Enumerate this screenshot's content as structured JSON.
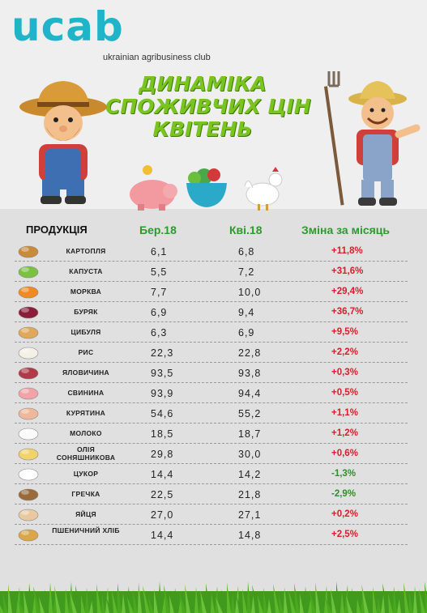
{
  "brand": {
    "logo_text": "ucab",
    "tagline": "ukrainian agribusiness club"
  },
  "headline": {
    "line1": "ДИНАМІКА",
    "line2": "СПОЖИВЧИХ ЦІН",
    "line3": "КВІТЕНЬ"
  },
  "colors": {
    "brand_teal": "#1fb4c8",
    "headline_green": "#7ac41f",
    "increase_red": "#d61f2c",
    "decrease_green": "#2e8f2a",
    "header_green": "#2d9a2d"
  },
  "decor_icons": [
    "farmer-left-icon",
    "piggy-bank-icon",
    "salad-bowl-icon",
    "rooster-icon",
    "farmer-with-pitchfork-icon",
    "grass-icon"
  ],
  "table": {
    "headers": {
      "product": "ПРОДУКЦІЯ",
      "prev": "Бер.18",
      "curr": "Кві.18",
      "change": "Зміна за місяць"
    },
    "rows": [
      {
        "icon": "potato-icon",
        "name": "КАРТОПЛЯ",
        "prev": "6,1",
        "curr": "6,8",
        "change": "+11,8%",
        "dir": "up"
      },
      {
        "icon": "cabbage-icon",
        "name": "КАПУСТА",
        "prev": "5,5",
        "curr": "7,2",
        "change": "+31,6%",
        "dir": "up"
      },
      {
        "icon": "carrot-icon",
        "name": "МОРКВА",
        "prev": "7,7",
        "curr": "10,0",
        "change": "+29,4%",
        "dir": "up"
      },
      {
        "icon": "beet-icon",
        "name": "БУРЯК",
        "prev": "6,9",
        "curr": "9,4",
        "change": "+36,7%",
        "dir": "up"
      },
      {
        "icon": "onion-icon",
        "name": "ЦИБУЛЯ",
        "prev": "6,3",
        "curr": "6,9",
        "change": "+9,5%",
        "dir": "up"
      },
      {
        "icon": "rice-icon",
        "name": "РИС",
        "prev": "22,3",
        "curr": "22,8",
        "change": "+2,2%",
        "dir": "up"
      },
      {
        "icon": "beef-icon",
        "name": "ЯЛОВИЧИНА",
        "prev": "93,5",
        "curr": "93,8",
        "change": "+0,3%",
        "dir": "up"
      },
      {
        "icon": "pork-icon",
        "name": "СВИНИНА",
        "prev": "93,9",
        "curr": "94,4",
        "change": "+0,5%",
        "dir": "up"
      },
      {
        "icon": "chicken-meat-icon",
        "name": "КУРЯТИНА",
        "prev": "54,6",
        "curr": "55,2",
        "change": "+1,1%",
        "dir": "up"
      },
      {
        "icon": "milk-icon",
        "name": "МОЛОКО",
        "prev": "18,5",
        "curr": "18,7",
        "change": "+1,2%",
        "dir": "up"
      },
      {
        "icon": "oil-icon",
        "name": "ОЛІЯ СОНЯШНИКОВА",
        "prev": "29,8",
        "curr": "30,0",
        "change": "+0,6%",
        "dir": "up"
      },
      {
        "icon": "sugar-icon",
        "name": "ЦУКОР",
        "prev": "14,4",
        "curr": "14,2",
        "change": "-1,3%",
        "dir": "down"
      },
      {
        "icon": "buckwheat-icon",
        "name": "ГРЕЧКА",
        "prev": "22,5",
        "curr": "21,8",
        "change": "-2,9%",
        "dir": "down"
      },
      {
        "icon": "eggs-icon",
        "name": "ЯЙЦЯ",
        "prev": "27,0",
        "curr": "27,1",
        "change": "+0,2%",
        "dir": "up"
      },
      {
        "icon": "bread-icon",
        "name": "ПШЕНИЧНИЙ ХЛІБ",
        "prev": "14,4",
        "curr": "14,8",
        "change": "+2,5%",
        "dir": "up"
      }
    ]
  }
}
